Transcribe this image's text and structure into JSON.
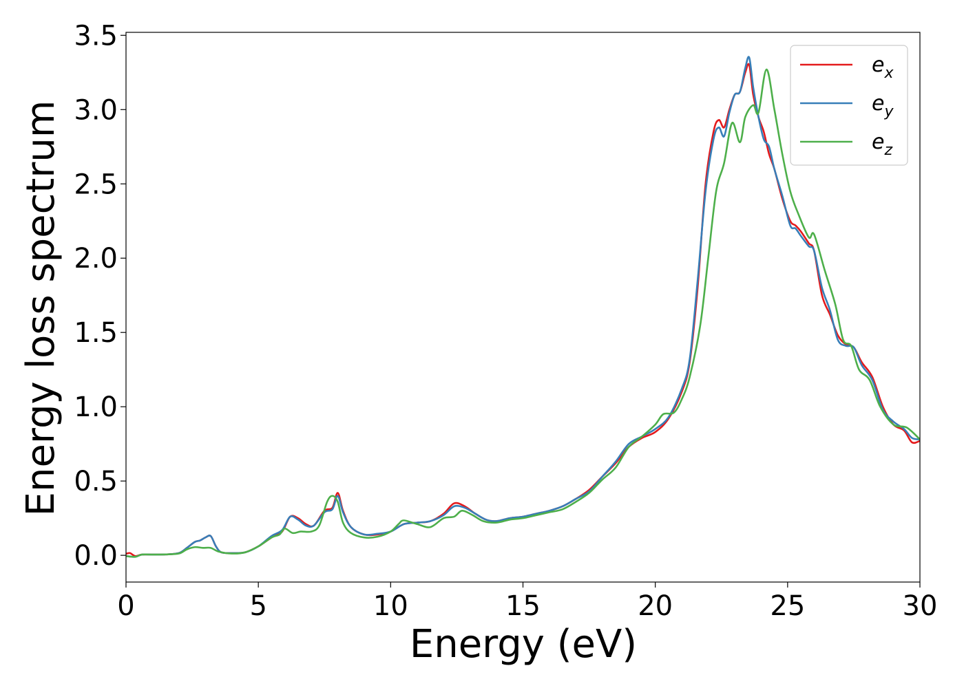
{
  "chart_data": {
    "type": "line",
    "title": "",
    "xlabel": "Energy (eV)",
    "ylabel": "Energy loss spectrum",
    "xlim": [
      0,
      30
    ],
    "ylim": [
      -0.18,
      3.52
    ],
    "xticks": [
      0,
      5,
      10,
      15,
      20,
      25,
      30
    ],
    "xtick_labels": [
      "0",
      "5",
      "10",
      "15",
      "20",
      "25",
      "30"
    ],
    "yticks": [
      0.0,
      0.5,
      1.0,
      1.5,
      2.0,
      2.5,
      3.0,
      3.5
    ],
    "ytick_labels": [
      "0.0",
      "0.5",
      "1.0",
      "1.5",
      "2.0",
      "2.5",
      "3.0",
      "3.5"
    ],
    "grid": false,
    "legend_position": "top-right",
    "series": [
      {
        "name": "e_x",
        "label_base": "e",
        "label_sub": "x",
        "color": "#e41a1c",
        "points": [
          [
            0,
            0.01
          ],
          [
            0.15,
            0.015
          ],
          [
            0.35,
            -0.005
          ],
          [
            0.6,
            0.005
          ],
          [
            1,
            0.005
          ],
          [
            1.5,
            0.006
          ],
          [
            2,
            0.015
          ],
          [
            2.3,
            0.05
          ],
          [
            2.6,
            0.09
          ],
          [
            2.8,
            0.1
          ],
          [
            3.0,
            0.12
          ],
          [
            3.2,
            0.13
          ],
          [
            3.4,
            0.06
          ],
          [
            3.6,
            0.02
          ],
          [
            4,
            0.015
          ],
          [
            4.5,
            0.02
          ],
          [
            5,
            0.06
          ],
          [
            5.5,
            0.12
          ],
          [
            5.9,
            0.16
          ],
          [
            6.2,
            0.26
          ],
          [
            6.5,
            0.25
          ],
          [
            6.8,
            0.21
          ],
          [
            7.1,
            0.2
          ],
          [
            7.5,
            0.3
          ],
          [
            7.8,
            0.32
          ],
          [
            8.0,
            0.42
          ],
          [
            8.2,
            0.3
          ],
          [
            8.5,
            0.19
          ],
          [
            9,
            0.14
          ],
          [
            9.5,
            0.14
          ],
          [
            10,
            0.16
          ],
          [
            10.5,
            0.21
          ],
          [
            11,
            0.22
          ],
          [
            11.5,
            0.23
          ],
          [
            12,
            0.28
          ],
          [
            12.4,
            0.35
          ],
          [
            12.8,
            0.33
          ],
          [
            13.2,
            0.28
          ],
          [
            13.6,
            0.24
          ],
          [
            14,
            0.23
          ],
          [
            14.5,
            0.25
          ],
          [
            15,
            0.26
          ],
          [
            15.5,
            0.28
          ],
          [
            16,
            0.3
          ],
          [
            16.5,
            0.33
          ],
          [
            17,
            0.38
          ],
          [
            17.5,
            0.44
          ],
          [
            18,
            0.53
          ],
          [
            18.5,
            0.62
          ],
          [
            19,
            0.73
          ],
          [
            19.5,
            0.79
          ],
          [
            20,
            0.83
          ],
          [
            20.5,
            0.92
          ],
          [
            21,
            1.1
          ],
          [
            21.3,
            1.3
          ],
          [
            21.6,
            1.8
          ],
          [
            21.9,
            2.5
          ],
          [
            22.2,
            2.85
          ],
          [
            22.4,
            2.93
          ],
          [
            22.6,
            2.88
          ],
          [
            22.8,
            3.0
          ],
          [
            23.0,
            3.1
          ],
          [
            23.2,
            3.12
          ],
          [
            23.4,
            3.25
          ],
          [
            23.55,
            3.3
          ],
          [
            23.7,
            3.1
          ],
          [
            23.9,
            2.95
          ],
          [
            24.1,
            2.85
          ],
          [
            24.3,
            2.7
          ],
          [
            24.5,
            2.6
          ],
          [
            24.8,
            2.4
          ],
          [
            25.1,
            2.25
          ],
          [
            25.3,
            2.22
          ],
          [
            25.5,
            2.18
          ],
          [
            25.8,
            2.1
          ],
          [
            26.0,
            2.05
          ],
          [
            26.3,
            1.75
          ],
          [
            26.6,
            1.62
          ],
          [
            26.9,
            1.48
          ],
          [
            27.2,
            1.42
          ],
          [
            27.5,
            1.4
          ],
          [
            27.8,
            1.3
          ],
          [
            28.2,
            1.2
          ],
          [
            28.6,
            1.0
          ],
          [
            29,
            0.88
          ],
          [
            29.4,
            0.84
          ],
          [
            29.7,
            0.76
          ],
          [
            30,
            0.77
          ]
        ]
      },
      {
        "name": "e_y",
        "label_base": "e",
        "label_sub": "y",
        "color": "#377eb8",
        "points": [
          [
            0,
            -0.005
          ],
          [
            0.35,
            -0.01
          ],
          [
            0.6,
            0.005
          ],
          [
            1,
            0.005
          ],
          [
            1.5,
            0.006
          ],
          [
            2,
            0.015
          ],
          [
            2.3,
            0.05
          ],
          [
            2.6,
            0.09
          ],
          [
            2.8,
            0.1
          ],
          [
            3.0,
            0.12
          ],
          [
            3.2,
            0.13
          ],
          [
            3.4,
            0.06
          ],
          [
            3.6,
            0.02
          ],
          [
            4,
            0.015
          ],
          [
            4.5,
            0.02
          ],
          [
            5,
            0.06
          ],
          [
            5.5,
            0.13
          ],
          [
            5.9,
            0.17
          ],
          [
            6.2,
            0.26
          ],
          [
            6.5,
            0.24
          ],
          [
            6.8,
            0.2
          ],
          [
            7.1,
            0.2
          ],
          [
            7.5,
            0.29
          ],
          [
            7.8,
            0.31
          ],
          [
            8.0,
            0.4
          ],
          [
            8.2,
            0.29
          ],
          [
            8.5,
            0.19
          ],
          [
            9,
            0.14
          ],
          [
            9.5,
            0.145
          ],
          [
            10,
            0.16
          ],
          [
            10.5,
            0.21
          ],
          [
            11,
            0.22
          ],
          [
            11.5,
            0.23
          ],
          [
            12,
            0.27
          ],
          [
            12.4,
            0.33
          ],
          [
            12.8,
            0.32
          ],
          [
            13.2,
            0.28
          ],
          [
            13.6,
            0.24
          ],
          [
            14,
            0.23
          ],
          [
            14.5,
            0.25
          ],
          [
            15,
            0.26
          ],
          [
            15.5,
            0.28
          ],
          [
            16,
            0.3
          ],
          [
            16.5,
            0.33
          ],
          [
            17,
            0.38
          ],
          [
            17.5,
            0.43
          ],
          [
            18,
            0.53
          ],
          [
            18.5,
            0.63
          ],
          [
            19,
            0.75
          ],
          [
            19.5,
            0.8
          ],
          [
            20,
            0.85
          ],
          [
            20.5,
            0.93
          ],
          [
            21,
            1.12
          ],
          [
            21.3,
            1.32
          ],
          [
            21.6,
            1.85
          ],
          [
            21.9,
            2.45
          ],
          [
            22.2,
            2.8
          ],
          [
            22.4,
            2.88
          ],
          [
            22.6,
            2.82
          ],
          [
            22.8,
            2.98
          ],
          [
            23.0,
            3.1
          ],
          [
            23.2,
            3.12
          ],
          [
            23.4,
            3.28
          ],
          [
            23.55,
            3.35
          ],
          [
            23.7,
            3.15
          ],
          [
            23.9,
            2.95
          ],
          [
            24.1,
            2.8
          ],
          [
            24.3,
            2.75
          ],
          [
            24.5,
            2.6
          ],
          [
            24.8,
            2.42
          ],
          [
            25.1,
            2.22
          ],
          [
            25.3,
            2.2
          ],
          [
            25.5,
            2.15
          ],
          [
            25.8,
            2.08
          ],
          [
            26.0,
            2.05
          ],
          [
            26.3,
            1.8
          ],
          [
            26.6,
            1.65
          ],
          [
            26.9,
            1.45
          ],
          [
            27.2,
            1.41
          ],
          [
            27.5,
            1.4
          ],
          [
            27.8,
            1.28
          ],
          [
            28.2,
            1.18
          ],
          [
            28.6,
            0.98
          ],
          [
            29,
            0.9
          ],
          [
            29.4,
            0.85
          ],
          [
            29.7,
            0.79
          ],
          [
            30,
            0.78
          ]
        ]
      },
      {
        "name": "e_z",
        "label_base": "e",
        "label_sub": "z",
        "color": "#4daf4a",
        "points": [
          [
            0,
            -0.005
          ],
          [
            0.35,
            -0.01
          ],
          [
            0.6,
            0.005
          ],
          [
            1,
            0.005
          ],
          [
            1.5,
            0.006
          ],
          [
            2,
            0.012
          ],
          [
            2.3,
            0.04
          ],
          [
            2.6,
            0.055
          ],
          [
            2.9,
            0.05
          ],
          [
            3.2,
            0.05
          ],
          [
            3.5,
            0.025
          ],
          [
            4,
            0.012
          ],
          [
            4.5,
            0.02
          ],
          [
            5,
            0.06
          ],
          [
            5.5,
            0.12
          ],
          [
            5.8,
            0.14
          ],
          [
            6.0,
            0.18
          ],
          [
            6.3,
            0.15
          ],
          [
            6.6,
            0.16
          ],
          [
            7.0,
            0.16
          ],
          [
            7.3,
            0.2
          ],
          [
            7.6,
            0.36
          ],
          [
            7.8,
            0.4
          ],
          [
            8.0,
            0.36
          ],
          [
            8.2,
            0.22
          ],
          [
            8.5,
            0.15
          ],
          [
            9,
            0.12
          ],
          [
            9.5,
            0.125
          ],
          [
            10,
            0.16
          ],
          [
            10.3,
            0.21
          ],
          [
            10.5,
            0.235
          ],
          [
            11,
            0.21
          ],
          [
            11.5,
            0.19
          ],
          [
            12,
            0.25
          ],
          [
            12.4,
            0.26
          ],
          [
            12.7,
            0.3
          ],
          [
            13.1,
            0.27
          ],
          [
            13.5,
            0.23
          ],
          [
            14,
            0.22
          ],
          [
            14.5,
            0.24
          ],
          [
            15,
            0.25
          ],
          [
            15.5,
            0.27
          ],
          [
            16,
            0.29
          ],
          [
            16.5,
            0.31
          ],
          [
            17,
            0.36
          ],
          [
            17.5,
            0.42
          ],
          [
            18,
            0.51
          ],
          [
            18.5,
            0.59
          ],
          [
            19,
            0.73
          ],
          [
            19.5,
            0.8
          ],
          [
            20,
            0.88
          ],
          [
            20.3,
            0.95
          ],
          [
            20.7,
            0.96
          ],
          [
            21,
            1.05
          ],
          [
            21.3,
            1.2
          ],
          [
            21.7,
            1.55
          ],
          [
            22.0,
            2.0
          ],
          [
            22.3,
            2.45
          ],
          [
            22.6,
            2.64
          ],
          [
            22.9,
            2.91
          ],
          [
            23.2,
            2.78
          ],
          [
            23.4,
            2.95
          ],
          [
            23.7,
            3.03
          ],
          [
            23.9,
            2.98
          ],
          [
            24.2,
            3.27
          ],
          [
            24.5,
            3.0
          ],
          [
            24.8,
            2.7
          ],
          [
            25.1,
            2.45
          ],
          [
            25.4,
            2.3
          ],
          [
            25.8,
            2.14
          ],
          [
            26.0,
            2.16
          ],
          [
            26.4,
            1.92
          ],
          [
            26.8,
            1.69
          ],
          [
            27.1,
            1.45
          ],
          [
            27.4,
            1.41
          ],
          [
            27.7,
            1.25
          ],
          [
            28.1,
            1.18
          ],
          [
            28.5,
            1.0
          ],
          [
            29,
            0.88
          ],
          [
            29.5,
            0.86
          ],
          [
            30,
            0.78
          ]
        ]
      }
    ]
  }
}
